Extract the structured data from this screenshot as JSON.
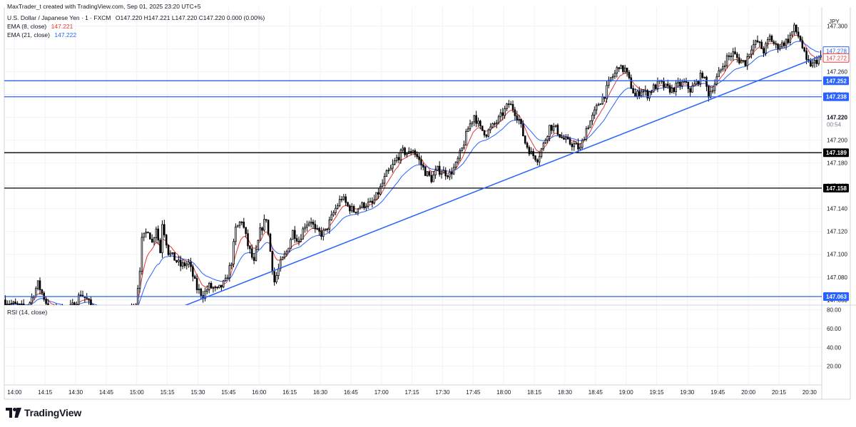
{
  "header": {
    "credit": "MaxTrader_t created with TradingView.com, Sep 01, 2025 23:20 UTC+5",
    "symbol": "U.S. Dollar / Japanese Yen · 1 · FXCM",
    "ohlc": "O147.220  H147.221  L147.220  C147.220  0.000 (0.00%)",
    "ema8_label": "EMA (8, close)",
    "ema8_value": "147.221",
    "ema21_label": "EMA (21, close)",
    "ema21_value": "147.222",
    "rsi_label": "RSI (14, close)"
  },
  "currency": "JPY",
  "colors": {
    "up_candle": "#ffffff",
    "down_candle": "#000000",
    "candle_border": "#000000",
    "ema8": "#e53935",
    "ema21": "#2962ff",
    "blue_level": "#2962ff",
    "black_level": "#000000",
    "trendline": "#2962ff",
    "grid": "#f0f3fa"
  },
  "chart_data": {
    "type": "candlestick",
    "y_ticks": [
      "147.300",
      "147.280",
      "147.260",
      "147.240",
      "147.220",
      "147.200",
      "147.180",
      "147.160",
      "147.140",
      "147.120",
      "147.100",
      "147.080",
      "147.060"
    ],
    "ylim": [
      147.0555,
      147.3115
    ],
    "x_ticks": [
      "14:00",
      "14:15",
      "14:30",
      "14:45",
      "15:00",
      "15:15",
      "15:30",
      "15:45",
      "16:00",
      "16:15",
      "16:30",
      "16:45",
      "17:00",
      "17:15",
      "17:30",
      "17:45",
      "18:00",
      "18:15",
      "18:30",
      "18:45",
      "19:00",
      "19:15",
      "19:30",
      "19:45",
      "20:00",
      "20:15",
      "20:30"
    ],
    "x_tick_minutes": [
      0,
      15,
      30,
      45,
      60,
      75,
      90,
      105,
      120,
      135,
      150,
      165,
      180,
      195,
      210,
      225,
      240,
      255,
      270,
      285,
      300,
      315,
      330,
      345,
      360,
      375,
      390
    ],
    "xlim_minutes": [
      -5,
      396
    ],
    "candle_start_minute": -5,
    "price_path": [
      [
        -5,
        147.06
      ],
      [
        0,
        147.056
      ],
      [
        5,
        147.053
      ],
      [
        8,
        147.058
      ],
      [
        10,
        147.066
      ],
      [
        12,
        147.074
      ],
      [
        15,
        147.062
      ],
      [
        18,
        147.05
      ],
      [
        22,
        147.052
      ],
      [
        27,
        147.052
      ],
      [
        30,
        147.056
      ],
      [
        33,
        147.066
      ],
      [
        36,
        147.06
      ],
      [
        40,
        147.05
      ],
      [
        45,
        147.048
      ],
      [
        55,
        147.05
      ],
      [
        60,
        147.056
      ],
      [
        62,
        147.088
      ],
      [
        63,
        147.112
      ],
      [
        66,
        147.122
      ],
      [
        68,
        147.11
      ],
      [
        70,
        147.124
      ],
      [
        72,
        147.102
      ],
      [
        73,
        147.128
      ],
      [
        76,
        147.102
      ],
      [
        79,
        147.096
      ],
      [
        82,
        147.09
      ],
      [
        86,
        147.092
      ],
      [
        90,
        147.07
      ],
      [
        93,
        147.064
      ],
      [
        96,
        147.072
      ],
      [
        100,
        147.068
      ],
      [
        104,
        147.076
      ],
      [
        107,
        147.094
      ],
      [
        109,
        147.122
      ],
      [
        112,
        147.13
      ],
      [
        115,
        147.108
      ],
      [
        118,
        147.092
      ],
      [
        121,
        147.12
      ],
      [
        124,
        147.132
      ],
      [
        127,
        147.088
      ],
      [
        128,
        147.076
      ],
      [
        131,
        147.092
      ],
      [
        134,
        147.102
      ],
      [
        137,
        147.12
      ],
      [
        140,
        147.112
      ],
      [
        143,
        147.126
      ],
      [
        146,
        147.13
      ],
      [
        148,
        147.12
      ],
      [
        151,
        147.118
      ],
      [
        153,
        147.12
      ],
      [
        155,
        147.128
      ],
      [
        158,
        147.14
      ],
      [
        161,
        147.15
      ],
      [
        164,
        147.142
      ],
      [
        167,
        147.138
      ],
      [
        170,
        147.142
      ],
      [
        173,
        147.144
      ],
      [
        176,
        147.144
      ],
      [
        179,
        147.154
      ],
      [
        181,
        147.162
      ],
      [
        183,
        147.17
      ],
      [
        185,
        147.174
      ],
      [
        188,
        147.184
      ],
      [
        191,
        147.19
      ],
      [
        194,
        147.188
      ],
      [
        196,
        147.192
      ],
      [
        199,
        147.182
      ],
      [
        202,
        147.172
      ],
      [
        205,
        147.166
      ],
      [
        208,
        147.174
      ],
      [
        211,
        147.172
      ],
      [
        214,
        147.17
      ],
      [
        217,
        147.178
      ],
      [
        220,
        147.192
      ],
      [
        223,
        147.21
      ],
      [
        226,
        147.222
      ],
      [
        229,
        147.21
      ],
      [
        232,
        147.206
      ],
      [
        235,
        147.212
      ],
      [
        238,
        147.218
      ],
      [
        241,
        147.226
      ],
      [
        243,
        147.232
      ],
      [
        245,
        147.228
      ],
      [
        248,
        147.218
      ],
      [
        251,
        147.198
      ],
      [
        254,
        147.188
      ],
      [
        257,
        147.184
      ],
      [
        260,
        147.196
      ],
      [
        263,
        147.212
      ],
      [
        266,
        147.21
      ],
      [
        269,
        147.202
      ],
      [
        272,
        147.198
      ],
      [
        275,
        147.196
      ],
      [
        278,
        147.192
      ],
      [
        281,
        147.21
      ],
      [
        284,
        147.22
      ],
      [
        287,
        147.232
      ],
      [
        290,
        147.24
      ],
      [
        293,
        147.254
      ],
      [
        295,
        147.258
      ],
      [
        297,
        147.266
      ],
      [
        298,
        147.262
      ],
      [
        300,
        147.262
      ],
      [
        302,
        147.252
      ],
      [
        305,
        147.238
      ],
      [
        308,
        147.244
      ],
      [
        311,
        147.24
      ],
      [
        314,
        147.246
      ],
      [
        317,
        147.25
      ],
      [
        320,
        147.246
      ],
      [
        323,
        147.244
      ],
      [
        326,
        147.248
      ],
      [
        329,
        147.25
      ],
      [
        332,
        147.244
      ],
      [
        335,
        147.25
      ],
      [
        338,
        147.258
      ],
      [
        341,
        147.24
      ],
      [
        344,
        147.25
      ],
      [
        347,
        147.262
      ],
      [
        350,
        147.272
      ],
      [
        353,
        147.276
      ],
      [
        356,
        147.27
      ],
      [
        359,
        147.268
      ],
      [
        362,
        147.282
      ],
      [
        365,
        147.286
      ],
      [
        368,
        147.278
      ],
      [
        371,
        147.29
      ],
      [
        374,
        147.282
      ],
      [
        377,
        147.284
      ],
      [
        380,
        147.288
      ],
      [
        383,
        147.298
      ],
      [
        386,
        147.288
      ],
      [
        389,
        147.268
      ],
      [
        392,
        147.266
      ],
      [
        395,
        147.272
      ]
    ],
    "series": [
      {
        "name": "EMA (8, close)",
        "period": 8
      },
      {
        "name": "EMA (21, close)",
        "period": 21
      }
    ],
    "horizontal_levels": [
      {
        "value": 147.252,
        "label": "147.252",
        "style": "blue"
      },
      {
        "value": 147.238,
        "label": "147.238",
        "style": "blue"
      },
      {
        "value": 147.189,
        "label": "147.189",
        "style": "black"
      },
      {
        "value": 147.158,
        "label": "147.158",
        "style": "black"
      },
      {
        "value": 147.063,
        "label": "147.063",
        "style": "blue"
      }
    ],
    "trendline": {
      "from": [
        82,
        147.054
      ],
      "to": [
        396,
        147.274
      ]
    },
    "price_badges": [
      {
        "value": 147.278,
        "label": "147.278",
        "color": "#2962ff"
      },
      {
        "value": 147.272,
        "label": "147.272",
        "color": "#e53935"
      }
    ],
    "current_price": {
      "value": 147.22,
      "label": "147.220",
      "countdown": "00:54"
    },
    "rsi": {
      "ticks": [
        "80.00",
        "60.00",
        "40.00",
        "20.00"
      ],
      "ylim": [
        0,
        85
      ],
      "values": []
    }
  }
}
